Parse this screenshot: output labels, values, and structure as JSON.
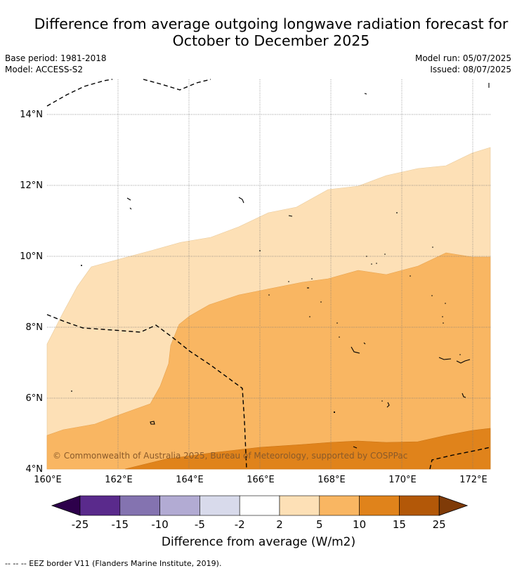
{
  "title_line1": "Difference from average outgoing longwave radiation forecast for",
  "title_line2": "October to December 2025",
  "base_period": "Base period: 1981-2018",
  "model": "Model: ACCESS-S2",
  "model_run": "Model run: 05/07/2025",
  "issued": "Issued: 08/07/2025",
  "copyright": "© Commonwealth of Australia 2025, Bureau of Meteorology, supported by COSPPac",
  "latitude_labels": [
    "4°N",
    "6°N",
    "8°N",
    "10°N",
    "12°N",
    "14°N"
  ],
  "longitude_labels": [
    "160°E",
    "162°E",
    "164°E",
    "166°E",
    "168°E",
    "170°E",
    "172°E"
  ],
  "colorbar": {
    "label": "Difference from average (W/m2)",
    "ticks": [
      "-25",
      "-15",
      "-10",
      "-5",
      "-2",
      "2",
      "5",
      "10",
      "15",
      "25"
    ],
    "colors": [
      "#2d004b",
      "#5a2a8c",
      "#8473b0",
      "#b2abd3",
      "#d8daeb",
      "#ffffff",
      "#fde0b6",
      "#f9b662",
      "#e0831b",
      "#b35808",
      "#7f3b08"
    ]
  },
  "footer": "--  --  -- EEZ border V11 (Flanders Marine Institute, 2019)."
}
